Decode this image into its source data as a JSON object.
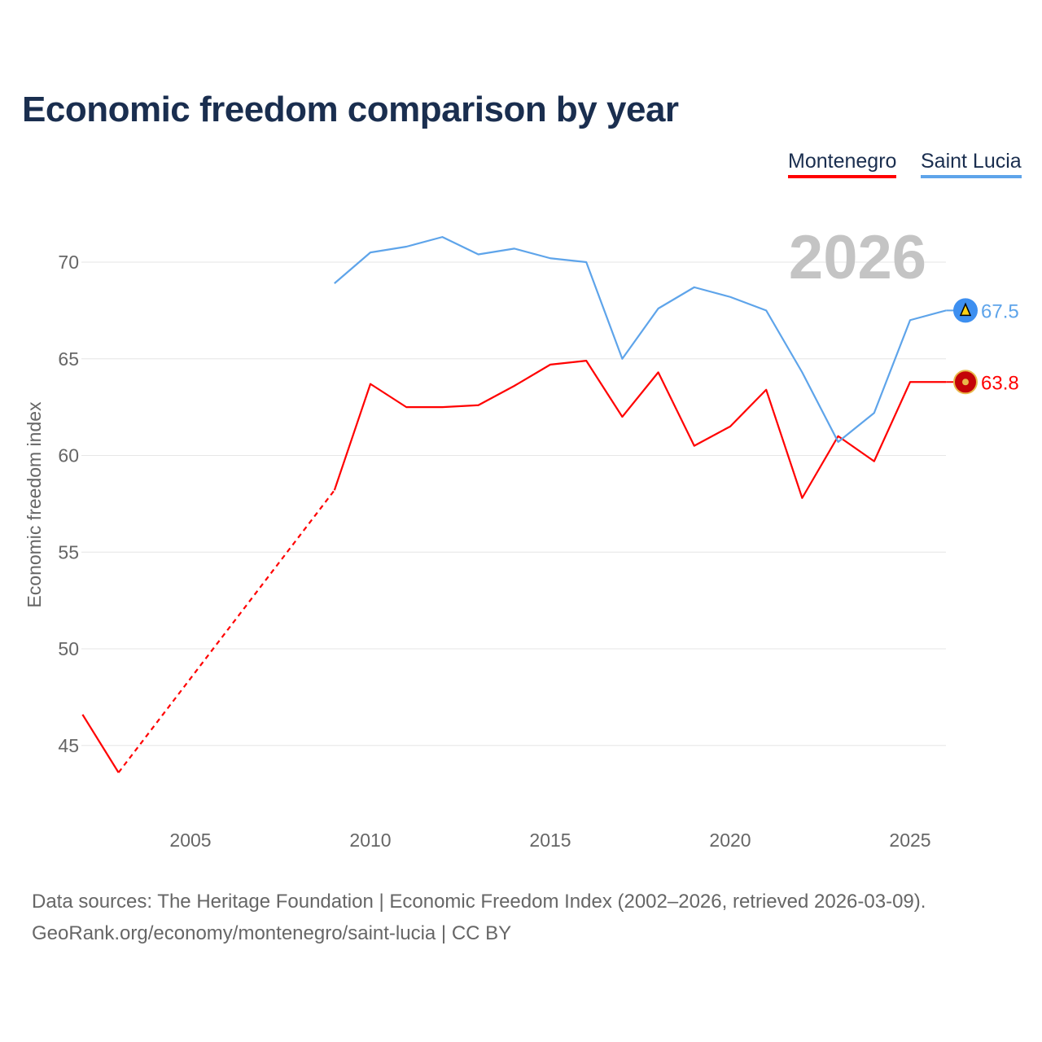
{
  "chart_data": {
    "type": "line",
    "title": "Economic freedom comparison by year",
    "xlabel": "",
    "ylabel": "Economic freedom index",
    "xlim": [
      2002,
      2026
    ],
    "ylim": [
      41.5,
      72.5
    ],
    "x_ticks": [
      2005,
      2010,
      2015,
      2020,
      2025
    ],
    "y_ticks": [
      45,
      50,
      55,
      60,
      65,
      70
    ],
    "grid": true,
    "legend_position": "top-right",
    "year_watermark": "2026",
    "series": [
      {
        "name": "Montenegro",
        "color": "#ff0000",
        "flag_icon": "montenegro-flag-icon",
        "end_label": "63.8",
        "x": [
          2002,
          2003,
          2009,
          2010,
          2011,
          2012,
          2013,
          2014,
          2015,
          2016,
          2017,
          2018,
          2019,
          2020,
          2021,
          2022,
          2023,
          2024,
          2025,
          2026
        ],
        "values": [
          46.6,
          43.6,
          58.2,
          63.7,
          62.5,
          62.5,
          62.6,
          63.6,
          64.7,
          64.9,
          62.0,
          64.3,
          60.5,
          61.5,
          63.4,
          57.8,
          61.0,
          59.7,
          63.8,
          63.8
        ],
        "dashed_gap": [
          2003,
          2009
        ]
      },
      {
        "name": "Saint Lucia",
        "color": "#5ea4ea",
        "flag_icon": "saint-lucia-flag-icon",
        "end_label": "67.5",
        "x": [
          2009,
          2010,
          2011,
          2012,
          2013,
          2014,
          2015,
          2016,
          2017,
          2018,
          2019,
          2020,
          2021,
          2022,
          2023,
          2024,
          2025,
          2026
        ],
        "values": [
          68.9,
          70.5,
          70.8,
          71.3,
          70.4,
          70.7,
          70.2,
          70.0,
          65.0,
          67.6,
          68.7,
          68.2,
          67.5,
          64.3,
          60.7,
          62.2,
          67.0,
          67.5
        ]
      }
    ]
  },
  "footer": {
    "source_line": "Data sources: The Heritage Foundation | Economic Freedom Index (2002–2026, retrieved 2026-03-09).",
    "credit_line": "GeoRank.org/economy/montenegro/saint-lucia | CC BY"
  }
}
